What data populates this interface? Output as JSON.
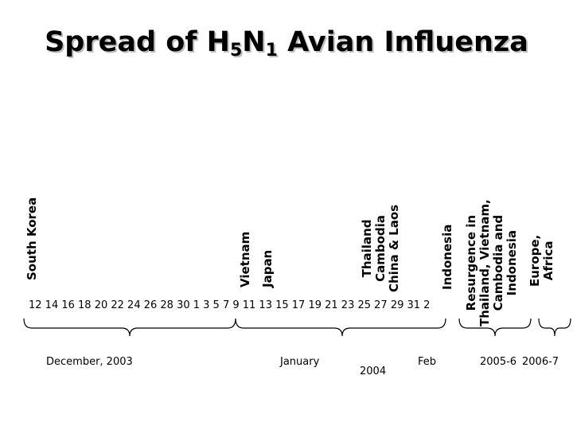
{
  "title": {
    "prefix": "Spread of H",
    "sub1": "5",
    "mid": "N",
    "sub2": "1",
    "suffix": " Avian Influenza"
  },
  "events": {
    "south_korea": [
      "South Korea"
    ],
    "vietnam": [
      "Vietnam"
    ],
    "japan": [
      "Japan"
    ],
    "thailand_group": [
      "Thailand",
      "Cambodia",
      "China & Laos"
    ],
    "indonesia": [
      "Indonesia"
    ],
    "resurgence": [
      "Resurgence in",
      "Thailand, Vietnam,",
      "Cambodia and",
      "Indonesia"
    ],
    "europe_africa": [
      "Europe,",
      "Africa"
    ]
  },
  "timeline": {
    "dates": "12 14 16 18 20 22 24 26 28 30 1 3 5 7 9 11 13 15 17 19 21 23 25 27 29 31 2"
  },
  "periods": {
    "december": "December, 2003",
    "january": "January",
    "year_2004": "2004",
    "feb": "Feb",
    "y2005_6": "2005-6",
    "y2006_7": "2006-7"
  }
}
